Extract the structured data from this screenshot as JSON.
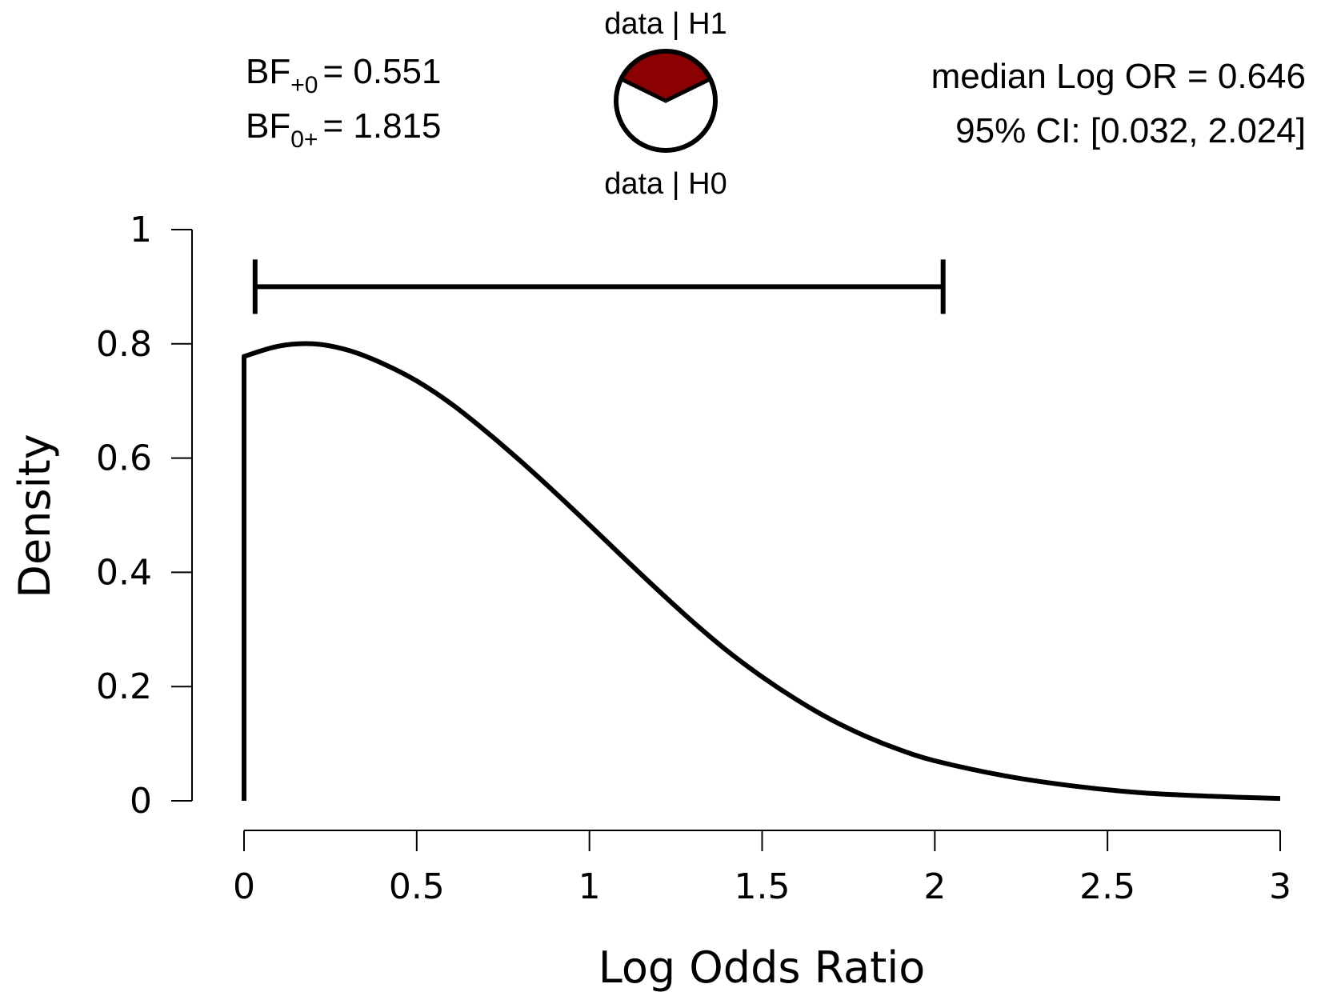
{
  "chart_data": {
    "type": "line",
    "xlabel": "Log Odds Ratio",
    "ylabel": "Density",
    "xlim": [
      0,
      3
    ],
    "ylim": [
      0,
      1
    ],
    "xticks": [
      "0",
      "0.5",
      "1",
      "1.5",
      "2",
      "2.5",
      "3"
    ],
    "yticks": [
      "0",
      "0.2",
      "0.4",
      "0.6",
      "0.8",
      "1"
    ],
    "grid": false,
    "series": [
      {
        "x": [
          0,
          0,
          0.1,
          0.2,
          0.3,
          0.4,
          0.5,
          0.6,
          0.7,
          0.8,
          0.9,
          1.0,
          1.1,
          1.2,
          1.3,
          1.4,
          1.5,
          1.6,
          1.7,
          1.8,
          1.9,
          2.0,
          2.2,
          2.4,
          2.6,
          2.8,
          3.0
        ],
        "y": [
          0,
          0.778,
          0.796,
          0.8,
          0.789,
          0.766,
          0.735,
          0.695,
          0.647,
          0.595,
          0.54,
          0.483,
          0.425,
          0.368,
          0.313,
          0.262,
          0.217,
          0.177,
          0.142,
          0.113,
          0.089,
          0.07,
          0.044,
          0.026,
          0.014,
          0.008,
          0.004
        ],
        "color": "#000000"
      }
    ],
    "credible_interval": {
      "lower": 0.032,
      "upper": 2.024,
      "y": 0.9
    }
  },
  "header": {
    "bf_plus0_label": "BF",
    "bf_plus0_sub": "+0",
    "bf_plus0_value": "= 0.551",
    "bf_0plus_label": "BF",
    "bf_0plus_sub": "0+",
    "bf_0plus_value": "= 1.815",
    "pie_top_label": "data | H1",
    "pie_bottom_label": "data | H0",
    "median_text": "median Log OR =  0.646",
    "ci_text": "95% CI: [0.032, 2.024]"
  },
  "pie": {
    "h1_fraction": 0.355,
    "h1_color": "#8b0000",
    "h0_color": "#ffffff"
  }
}
